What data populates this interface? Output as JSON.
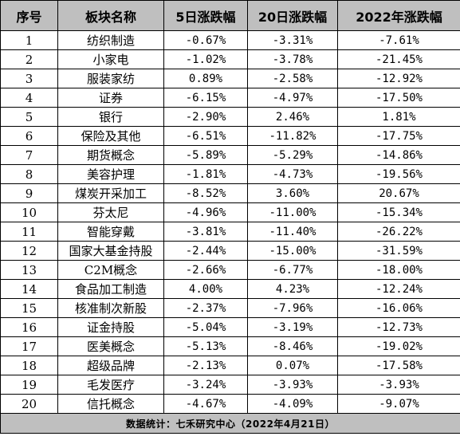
{
  "table": {
    "headers": [
      "序号",
      "板块名称",
      "5日涨跌幅",
      "20日涨跌幅",
      "2022年涨跌幅"
    ],
    "rows": [
      {
        "rank": "1",
        "sector": "纺织制造",
        "d5": "-0.67%",
        "d20": "-3.31%",
        "ytd": "-7.61%"
      },
      {
        "rank": "2",
        "sector": "小家电",
        "d5": "-1.02%",
        "d20": "-3.78%",
        "ytd": "-21.45%"
      },
      {
        "rank": "3",
        "sector": "服装家纺",
        "d5": "0.89%",
        "d20": "-2.58%",
        "ytd": "-12.92%"
      },
      {
        "rank": "4",
        "sector": "证券",
        "d5": "-6.15%",
        "d20": "-4.97%",
        "ytd": "-17.50%"
      },
      {
        "rank": "5",
        "sector": "银行",
        "d5": "-2.90%",
        "d20": "2.46%",
        "ytd": "1.81%"
      },
      {
        "rank": "6",
        "sector": "保险及其他",
        "d5": "-6.51%",
        "d20": "-11.82%",
        "ytd": "-17.75%"
      },
      {
        "rank": "7",
        "sector": "期货概念",
        "d5": "-5.89%",
        "d20": "-5.29%",
        "ytd": "-14.86%"
      },
      {
        "rank": "8",
        "sector": "美容护理",
        "d5": "-1.81%",
        "d20": "-4.73%",
        "ytd": "-19.56%"
      },
      {
        "rank": "9",
        "sector": "煤炭开采加工",
        "d5": "-8.52%",
        "d20": "3.60%",
        "ytd": "20.67%"
      },
      {
        "rank": "10",
        "sector": "芬太尼",
        "d5": "-4.96%",
        "d20": "-11.00%",
        "ytd": "-15.34%"
      },
      {
        "rank": "11",
        "sector": "智能穿戴",
        "d5": "-3.81%",
        "d20": "-11.40%",
        "ytd": "-26.22%"
      },
      {
        "rank": "12",
        "sector": "国家大基金持股",
        "d5": "-2.44%",
        "d20": "-15.00%",
        "ytd": "-31.59%"
      },
      {
        "rank": "13",
        "sector": "C2M概念",
        "d5": "-2.66%",
        "d20": "-6.77%",
        "ytd": "-18.00%"
      },
      {
        "rank": "14",
        "sector": "食品加工制造",
        "d5": "4.00%",
        "d20": "4.23%",
        "ytd": "-12.24%"
      },
      {
        "rank": "15",
        "sector": "核准制次新股",
        "d5": "-2.37%",
        "d20": "-7.96%",
        "ytd": "-16.06%"
      },
      {
        "rank": "16",
        "sector": "证金持股",
        "d5": "-5.04%",
        "d20": "-3.19%",
        "ytd": "-12.73%"
      },
      {
        "rank": "17",
        "sector": "医美概念",
        "d5": "-5.13%",
        "d20": "-8.46%",
        "ytd": "-19.02%"
      },
      {
        "rank": "18",
        "sector": "超级品牌",
        "d5": "-2.13%",
        "d20": "0.07%",
        "ytd": "-17.58%"
      },
      {
        "rank": "19",
        "sector": "毛发医疗",
        "d5": "-3.24%",
        "d20": "-3.93%",
        "ytd": "-3.93%"
      },
      {
        "rank": "20",
        "sector": "信托概念",
        "d5": "-4.67%",
        "d20": "-4.09%",
        "ytd": "-9.07%"
      }
    ],
    "footer": "数据统计：七禾研究中心（2022年4月21日）"
  },
  "colors": {
    "header_bg": "#bfbfbf",
    "footer_bg": "#bfbfbf",
    "grid_line": "#000000",
    "text": "#000000"
  }
}
